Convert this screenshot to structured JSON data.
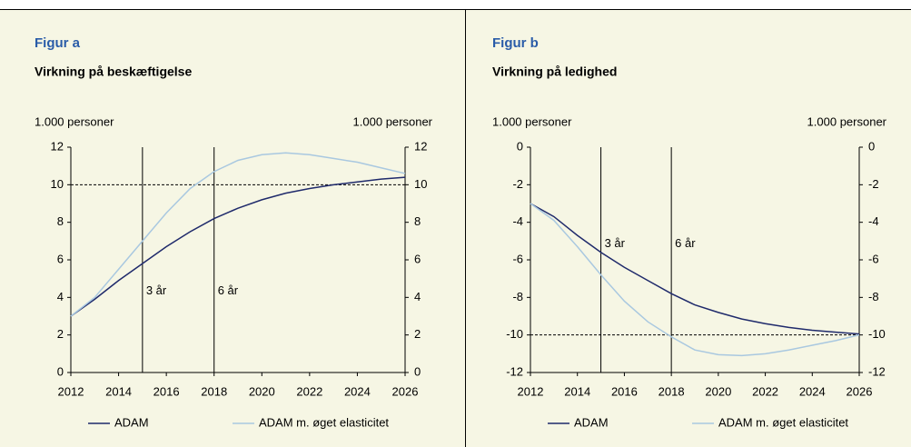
{
  "chart_data": [
    {
      "type": "line",
      "panel": "Figur a",
      "title": "Virkning på beskæftigelse",
      "ylabel": "1.000 personer",
      "y2label": "1.000 personer",
      "x": [
        2012,
        2013,
        2014,
        2015,
        2016,
        2017,
        2018,
        2019,
        2020,
        2021,
        2022,
        2023,
        2024,
        2025,
        2026
      ],
      "series": [
        {
          "name": "ADAM",
          "color": "#1f2a6b",
          "values": [
            3.0,
            3.9,
            4.9,
            5.8,
            6.7,
            7.5,
            8.2,
            8.75,
            9.2,
            9.55,
            9.8,
            10.0,
            10.15,
            10.3,
            10.4
          ]
        },
        {
          "name": "ADAM m. øget elasticitet",
          "color": "#a9c8e0",
          "values": [
            3.0,
            4.0,
            5.5,
            7.0,
            8.5,
            9.8,
            10.7,
            11.3,
            11.6,
            11.7,
            11.6,
            11.4,
            11.2,
            10.9,
            10.6
          ]
        }
      ],
      "xlim": [
        2012,
        2026
      ],
      "xticks": [
        2012,
        2014,
        2016,
        2018,
        2020,
        2022,
        2024,
        2026
      ],
      "ylim": [
        0,
        12
      ],
      "yticks": [
        0,
        2,
        4,
        6,
        8,
        10,
        12
      ],
      "y2lim": [
        0,
        12
      ],
      "y2ticks": [
        0,
        2,
        4,
        6,
        8,
        10,
        12
      ],
      "hline": 10,
      "annotations": [
        {
          "text": "3 år",
          "x": 2015
        },
        {
          "text": "6 år",
          "x": 2018
        }
      ]
    },
    {
      "type": "line",
      "panel": "Figur b",
      "title": "Virkning på ledighed",
      "ylabel": "1.000 personer",
      "y2label": "1.000 personer",
      "x": [
        2012,
        2013,
        2014,
        2015,
        2016,
        2017,
        2018,
        2019,
        2020,
        2021,
        2022,
        2023,
        2024,
        2025,
        2026
      ],
      "series": [
        {
          "name": "ADAM",
          "color": "#1f2a6b",
          "values": [
            -3.0,
            -3.7,
            -4.7,
            -5.6,
            -6.4,
            -7.1,
            -7.8,
            -8.4,
            -8.8,
            -9.15,
            -9.4,
            -9.6,
            -9.75,
            -9.85,
            -9.95
          ]
        },
        {
          "name": "ADAM m. øget elasticitet",
          "color": "#a9c8e0",
          "values": [
            -3.0,
            -3.9,
            -5.3,
            -6.8,
            -8.2,
            -9.3,
            -10.1,
            -10.8,
            -11.05,
            -11.1,
            -11.0,
            -10.8,
            -10.55,
            -10.3,
            -10.0
          ]
        }
      ],
      "xlim": [
        2012,
        2026
      ],
      "xticks": [
        2012,
        2014,
        2016,
        2018,
        2020,
        2022,
        2024,
        2026
      ],
      "ylim": [
        -12,
        0
      ],
      "yticks": [
        -12,
        -10,
        -8,
        -6,
        -4,
        -2,
        0
      ],
      "y2lim": [
        -12,
        0
      ],
      "y2ticks": [
        -12,
        -10,
        -8,
        -6,
        -4,
        -2,
        0
      ],
      "hline": -10,
      "annotations": [
        {
          "text": "3 år",
          "x": 2015
        },
        {
          "text": "6 år",
          "x": 2018
        }
      ]
    }
  ]
}
